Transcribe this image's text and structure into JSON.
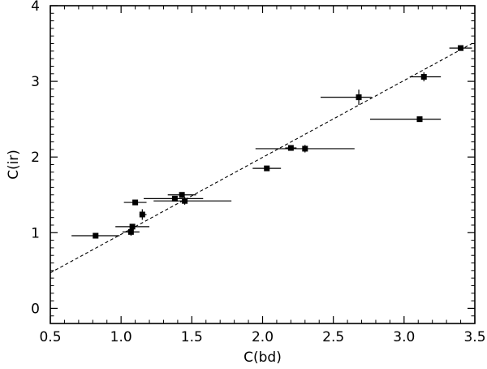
{
  "chart_data": {
    "type": "scatter",
    "title": "",
    "xlabel": "C(bd)",
    "ylabel": "C(ir)",
    "xlim": [
      0.5,
      3.5
    ],
    "ylim": [
      -0.2,
      4.0
    ],
    "xticks": [
      0.5,
      1.0,
      1.5,
      2.0,
      2.5,
      3.0,
      3.5
    ],
    "xtick_labels": [
      "0.5",
      "1.0",
      "1.5",
      "2.0",
      "2.5",
      "3.0",
      "3.5"
    ],
    "yticks": [
      0,
      1,
      2,
      3,
      4
    ],
    "ytick_labels": [
      "0",
      "1",
      "2",
      "3",
      "4"
    ],
    "grid": false,
    "colors": {
      "axis": "#000000",
      "marker": "#000000",
      "fit_line": "#000000"
    },
    "series": [
      {
        "marker": "square",
        "points": [
          {
            "x": 0.82,
            "y": 0.96,
            "xerr_lo": 0.17,
            "xerr_hi": 0.17,
            "yerr": 0.02
          },
          {
            "x": 1.07,
            "y": 1.01,
            "xerr_lo": 0.06,
            "xerr_hi": 0.06,
            "yerr": 0.05
          },
          {
            "x": 1.08,
            "y": 1.08,
            "xerr_lo": 0.12,
            "xerr_hi": 0.12,
            "yerr": 0.03
          },
          {
            "x": 1.1,
            "y": 1.4,
            "xerr_lo": 0.08,
            "xerr_hi": 0.08,
            "yerr": 0.03
          },
          {
            "x": 1.15,
            "y": 1.24,
            "xerr_lo": 0.02,
            "xerr_hi": 0.03,
            "yerr": 0.07
          },
          {
            "x": 1.38,
            "y": 1.45,
            "xerr_lo": 0.22,
            "xerr_hi": 0.2,
            "yerr": 0.02
          },
          {
            "x": 1.43,
            "y": 1.5,
            "xerr_lo": 0.1,
            "xerr_hi": 0.1,
            "yerr": 0.02
          },
          {
            "x": 1.45,
            "y": 1.42,
            "xerr_lo": 0.22,
            "xerr_hi": 0.33,
            "yerr": 0.05
          },
          {
            "x": 2.03,
            "y": 1.85,
            "xerr_lo": 0.1,
            "xerr_hi": 0.1,
            "yerr": 0.02
          },
          {
            "x": 2.2,
            "y": 2.12,
            "xerr_lo": 0.04,
            "xerr_hi": 0.04,
            "yerr": 0.03
          },
          {
            "x": 2.3,
            "y": 2.11,
            "xerr_lo": 0.35,
            "xerr_hi": 0.35,
            "yerr": 0.05
          },
          {
            "x": 2.68,
            "y": 2.79,
            "xerr_lo": 0.27,
            "xerr_hi": 0.09,
            "yerr": 0.1
          },
          {
            "x": 3.11,
            "y": 2.5,
            "xerr_lo": 0.35,
            "xerr_hi": 0.15,
            "yerr": 0.03
          },
          {
            "x": 3.14,
            "y": 3.06,
            "xerr_lo": 0.1,
            "xerr_hi": 0.12,
            "yerr": 0.06
          },
          {
            "x": 3.4,
            "y": 3.44,
            "xerr_lo": 0.08,
            "xerr_hi": 0.08,
            "yerr": 0.03
          }
        ]
      }
    ],
    "fit_line": {
      "style": "dashed",
      "x": [
        0.5,
        3.5
      ],
      "y": [
        0.47,
        3.52
      ]
    }
  }
}
